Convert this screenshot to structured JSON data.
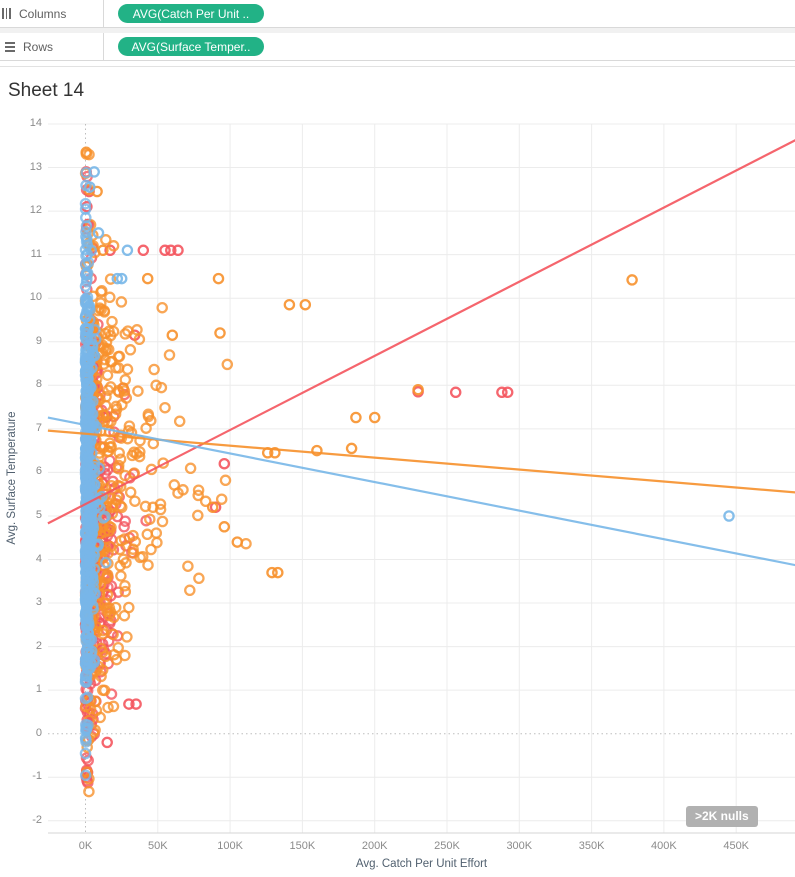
{
  "shelves": {
    "columns": {
      "label": "Columns",
      "pill": "AVG(Catch Per Unit ..",
      "pill_color": "#22b286"
    },
    "rows": {
      "label": "Rows",
      "pill": "AVG(Surface Temper..",
      "pill_color": "#22b286"
    }
  },
  "sheet_title": "Sheet 14",
  "nulls_badge": ">2K nulls",
  "chart_data": {
    "type": "scatter",
    "title": "Sheet 14",
    "xlabel": "Avg. Catch Per Unit Effort",
    "ylabel": "Avg. Surface Temperature",
    "x_unit": "thousands",
    "xlim_k": [
      -26,
      491
    ],
    "ylim": [
      -2.3,
      14
    ],
    "x_ticks_k": [
      0,
      50,
      100,
      150,
      200,
      250,
      300,
      350,
      400,
      450
    ],
    "x_tick_labels": [
      "0K",
      "50K",
      "100K",
      "150K",
      "200K",
      "250K",
      "300K",
      "350K",
      "400K",
      "450K"
    ],
    "y_ticks": [
      -2,
      -1,
      0,
      1,
      2,
      3,
      4,
      5,
      6,
      7,
      8,
      9,
      10,
      11,
      12,
      13,
      14
    ],
    "grid": true,
    "zero_lines": "dotted",
    "legend": "none",
    "colors": {
      "red": "#f4555e",
      "orange": "#f7912c",
      "blue": "#78b7e8"
    },
    "series": [
      {
        "name": "red",
        "color": "#f4555e",
        "count": 440,
        "seed": 101,
        "x_mean_k": 9,
        "x_max_k": 110,
        "y_mean": 4.9,
        "y_sd": 2.85,
        "y_min": -1.25,
        "y_max": 12.9,
        "y_peak": 5.0,
        "outliers_k": [
          [
            0.5,
            12.9
          ],
          [
            2.5,
            12.45
          ],
          [
            1,
            12.1
          ],
          [
            5,
            11.15
          ],
          [
            17,
            11.1
          ],
          [
            40,
            11.1
          ],
          [
            55,
            11.1
          ],
          [
            59,
            11.1
          ],
          [
            64,
            11.1
          ],
          [
            34,
            9.15
          ],
          [
            230,
            7.85
          ],
          [
            256,
            7.84
          ],
          [
            288,
            7.84
          ],
          [
            292,
            7.84
          ],
          [
            90,
            5.2
          ],
          [
            96,
            6.2
          ],
          [
            30,
            0.68
          ],
          [
            35,
            0.68
          ],
          [
            15,
            -0.2
          ]
        ]
      },
      {
        "name": "orange",
        "color": "#f7912c",
        "count": 400,
        "seed": 202,
        "x_mean_k": 26,
        "x_max_k": 165,
        "y_mean": 5.5,
        "y_sd": 2.85,
        "y_min": -1.4,
        "y_max": 13.35,
        "y_peak": 5.6,
        "outliers_k": [
          [
            0.5,
            13.35
          ],
          [
            8,
            12.45
          ],
          [
            12,
            11.1
          ],
          [
            43,
            10.45
          ],
          [
            92,
            10.45
          ],
          [
            378,
            10.42
          ],
          [
            141,
            9.85
          ],
          [
            152,
            9.85
          ],
          [
            93,
            9.2
          ],
          [
            60,
            9.15
          ],
          [
            126,
            6.45
          ],
          [
            131,
            6.45
          ],
          [
            160,
            6.5
          ],
          [
            184,
            6.55
          ],
          [
            187,
            7.26
          ],
          [
            200,
            7.26
          ],
          [
            230,
            7.9
          ],
          [
            129,
            3.7
          ],
          [
            133,
            3.7
          ],
          [
            96,
            4.75
          ],
          [
            88,
            5.2
          ],
          [
            105,
            4.4
          ]
        ]
      },
      {
        "name": "blue",
        "color": "#78b7e8",
        "count": 520,
        "seed": 303,
        "x_mean_k": 2.5,
        "x_max_k": 32,
        "y_mean": 5.6,
        "y_sd": 2.7,
        "y_min": -1.05,
        "y_max": 12.95,
        "y_peak": 5.6,
        "outliers_k": [
          [
            445,
            5.0
          ],
          [
            29,
            11.1
          ],
          [
            22,
            10.45
          ],
          [
            25,
            10.45
          ],
          [
            6,
            12.9
          ],
          [
            3,
            12.55
          ],
          [
            9,
            11.5
          ]
        ]
      }
    ],
    "trend_lines": [
      {
        "series": "red",
        "color": "#f4555e",
        "x0_k": -26,
        "y0": 4.83,
        "x1_k": 491,
        "y1": 13.63
      },
      {
        "series": "orange",
        "color": "#f7912c",
        "x0_k": -26,
        "y0": 6.96,
        "x1_k": 491,
        "y1": 5.54
      },
      {
        "series": "blue",
        "color": "#78b7e8",
        "x0_k": -26,
        "y0": 7.26,
        "x1_k": 491,
        "y1": 3.87
      }
    ]
  }
}
